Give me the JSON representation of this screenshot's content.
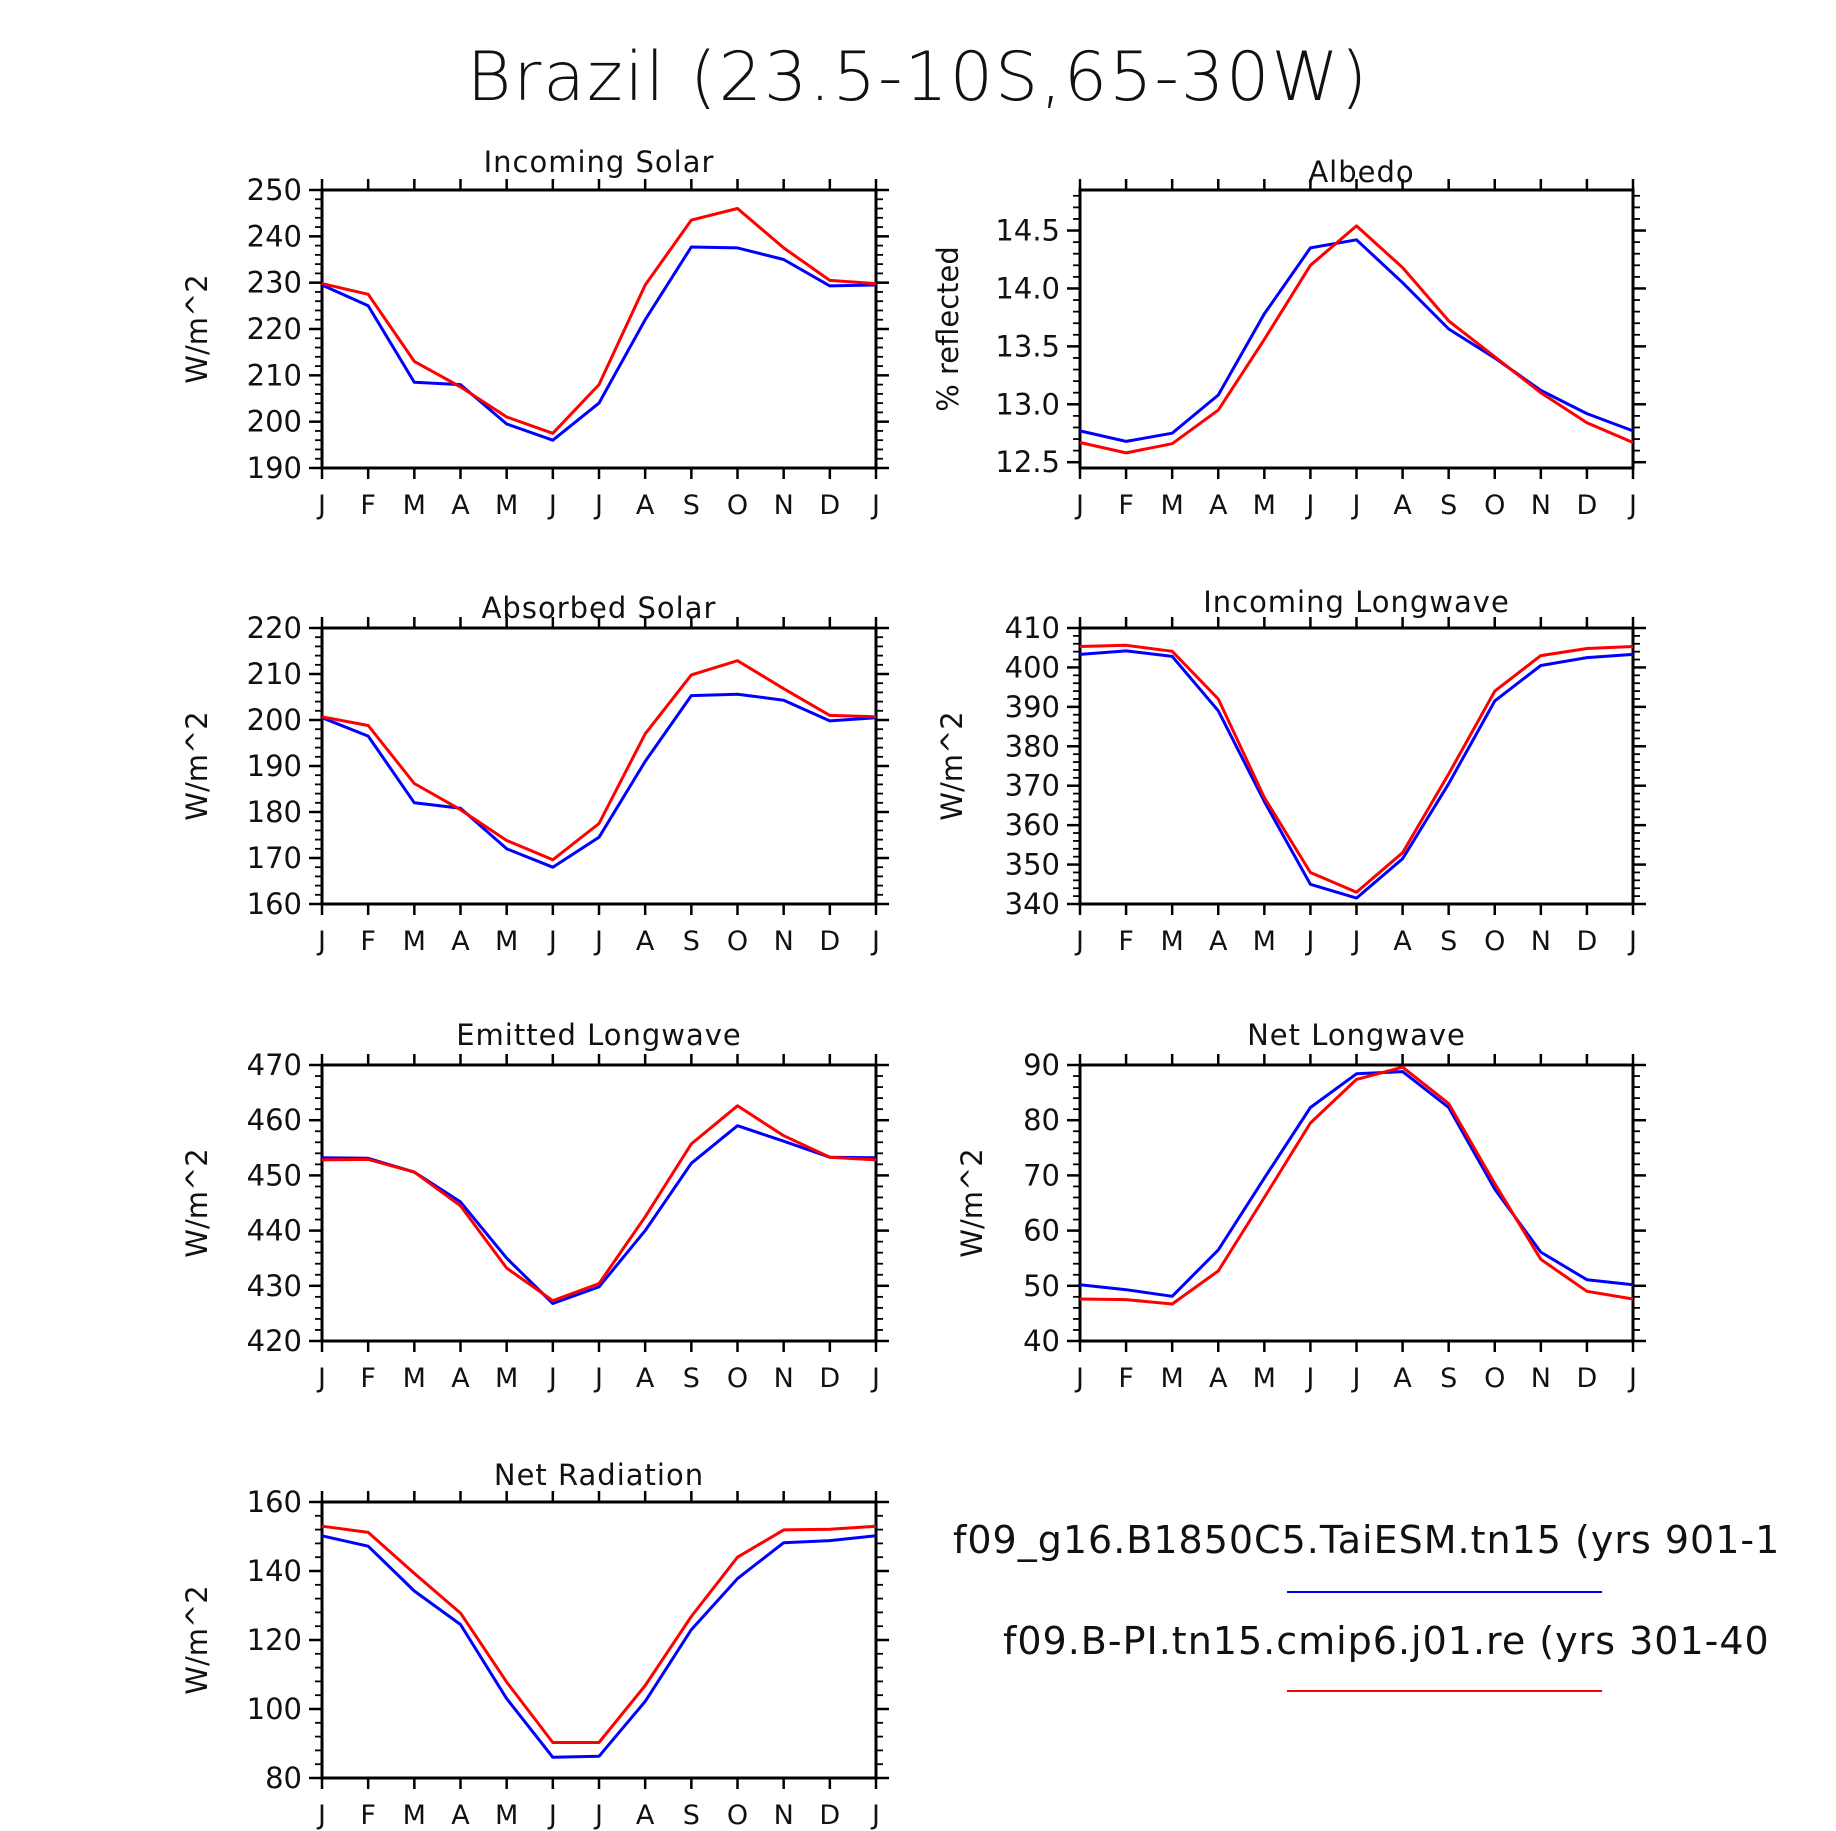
{
  "title": "Brazil (23.5-10S,65-30W)",
  "colors": {
    "case1": "#0000ff",
    "case2": "#ff0000",
    "axis": "#000000"
  },
  "months": [
    "J",
    "F",
    "M",
    "A",
    "M",
    "J",
    "J",
    "A",
    "S",
    "O",
    "N",
    "D",
    "J"
  ],
  "legend": {
    "case1": "f09_g16.B1850C5.TaiESM.tn15 (yrs 901-1",
    "case2": "f09.B-PI.tn15.cmip6.j01.re (yrs 301-40"
  },
  "chart_data": [
    {
      "type": "line",
      "title": "Incoming Solar",
      "ylabel": "W/m^2",
      "ylim": [
        190,
        250
      ],
      "yticks": [
        190,
        200,
        210,
        220,
        230,
        240,
        250
      ],
      "ytick_labels": [
        "190",
        "200",
        "210",
        "220",
        "230",
        "240",
        "250"
      ],
      "categories": [
        "J",
        "F",
        "M",
        "A",
        "M",
        "J",
        "J",
        "A",
        "S",
        "O",
        "N",
        "D",
        "J"
      ],
      "series": [
        {
          "color": "#0000ff",
          "values": [
            229.5,
            225,
            208.5,
            208,
            199.5,
            196,
            204,
            222,
            237.7,
            237.5,
            235,
            229.3,
            229.5
          ]
        },
        {
          "color": "#ff0000",
          "values": [
            229.8,
            227.5,
            213,
            207.5,
            201,
            197.5,
            208,
            229.5,
            243.5,
            246,
            237.5,
            230.5,
            229.8
          ]
        }
      ]
    },
    {
      "type": "line",
      "title": "Albedo",
      "ylabel": "% reflected",
      "ylim": [
        12.45,
        14.85
      ],
      "yticks": [
        12.5,
        13.0,
        13.5,
        14.0,
        14.5
      ],
      "ytick_labels": [
        "12.5",
        "13.0",
        "13.5",
        "14.0",
        "14.5"
      ],
      "categories": [
        "J",
        "F",
        "M",
        "A",
        "M",
        "J",
        "J",
        "A",
        "S",
        "O",
        "N",
        "D",
        "J"
      ],
      "series": [
        {
          "color": "#0000ff",
          "values": [
            12.77,
            12.68,
            12.75,
            13.08,
            13.78,
            14.35,
            14.42,
            14.05,
            13.65,
            13.4,
            13.12,
            12.92,
            12.77
          ]
        },
        {
          "color": "#ff0000",
          "values": [
            12.67,
            12.58,
            12.66,
            12.95,
            13.56,
            14.2,
            14.54,
            14.18,
            13.72,
            13.41,
            13.1,
            12.84,
            12.67
          ]
        }
      ]
    },
    {
      "type": "line",
      "title": "Absorbed Solar",
      "ylabel": "W/m^2",
      "ylim": [
        160,
        220
      ],
      "yticks": [
        160,
        170,
        180,
        190,
        200,
        210,
        220
      ],
      "ytick_labels": [
        "160",
        "170",
        "180",
        "190",
        "200",
        "210",
        "220"
      ],
      "categories": [
        "J",
        "F",
        "M",
        "A",
        "M",
        "J",
        "J",
        "A",
        "S",
        "O",
        "N",
        "D",
        "J"
      ],
      "series": [
        {
          "color": "#0000ff",
          "values": [
            200.5,
            196.5,
            182,
            180.8,
            172,
            168,
            174.5,
            191,
            205.3,
            205.6,
            204.3,
            199.8,
            200.5
          ]
        },
        {
          "color": "#ff0000",
          "values": [
            200.7,
            198.8,
            186.2,
            180.5,
            173.8,
            169.6,
            177.5,
            197,
            209.8,
            212.9,
            206.8,
            201,
            200.7
          ]
        }
      ]
    },
    {
      "type": "line",
      "title": "Incoming Longwave",
      "ylabel": "W/m^2",
      "ylim": [
        340,
        410
      ],
      "yticks": [
        340,
        350,
        360,
        370,
        380,
        390,
        400,
        410
      ],
      "ytick_labels": [
        "340",
        "350",
        "360",
        "370",
        "380",
        "390",
        "400",
        "410"
      ],
      "categories": [
        "J",
        "F",
        "M",
        "A",
        "M",
        "J",
        "J",
        "A",
        "S",
        "O",
        "N",
        "D",
        "J"
      ],
      "series": [
        {
          "color": "#0000ff",
          "values": [
            403.3,
            404.2,
            402.8,
            389,
            366,
            345,
            341.5,
            351.5,
            370.5,
            391.5,
            400.5,
            402.5,
            403.3
          ]
        },
        {
          "color": "#ff0000",
          "values": [
            405.3,
            405.6,
            404.1,
            392,
            367,
            348,
            343,
            353,
            373,
            394,
            403,
            404.8,
            405.3
          ]
        }
      ]
    },
    {
      "type": "line",
      "title": "Emitted Longwave",
      "ylabel": "W/m^2",
      "ylim": [
        420,
        470
      ],
      "yticks": [
        420,
        430,
        440,
        450,
        460,
        470
      ],
      "ytick_labels": [
        "420",
        "430",
        "440",
        "450",
        "460",
        "470"
      ],
      "categories": [
        "J",
        "F",
        "M",
        "A",
        "M",
        "J",
        "J",
        "A",
        "S",
        "O",
        "N",
        "D",
        "J"
      ],
      "series": [
        {
          "color": "#0000ff",
          "values": [
            453.2,
            453.1,
            450.6,
            445.2,
            435,
            426.8,
            429.8,
            440,
            452.2,
            459,
            456.2,
            453.3,
            453.2
          ]
        },
        {
          "color": "#ff0000",
          "values": [
            452.8,
            452.9,
            450.6,
            444.5,
            433.2,
            427.3,
            430.4,
            442.5,
            455.7,
            462.6,
            457.2,
            453.3,
            452.8
          ]
        }
      ]
    },
    {
      "type": "line",
      "title": "Net Longwave",
      "ylabel": "W/m^2",
      "ylim": [
        40,
        90
      ],
      "yticks": [
        40,
        50,
        60,
        70,
        80,
        90
      ],
      "ytick_labels": [
        "40",
        "50",
        "60",
        "70",
        "80",
        "90"
      ],
      "categories": [
        "J",
        "F",
        "M",
        "A",
        "M",
        "J",
        "J",
        "A",
        "S",
        "O",
        "N",
        "D",
        "J"
      ],
      "series": [
        {
          "color": "#0000ff",
          "values": [
            50.2,
            49.3,
            48.1,
            56.5,
            69.5,
            82.3,
            88.4,
            88.8,
            82.3,
            67.5,
            56.1,
            51.1,
            50.2
          ]
        },
        {
          "color": "#ff0000",
          "values": [
            47.6,
            47.5,
            46.7,
            52.7,
            66,
            79.5,
            87.4,
            89.6,
            83,
            68.5,
            54.8,
            49,
            47.6
          ]
        }
      ]
    },
    {
      "type": "line",
      "title": "Net Radiation",
      "ylabel": "W/m^2",
      "ylim": [
        80,
        160
      ],
      "yticks": [
        80,
        100,
        120,
        140,
        160
      ],
      "ytick_labels": [
        "80",
        "100",
        "120",
        "140",
        "160"
      ],
      "categories": [
        "J",
        "F",
        "M",
        "A",
        "M",
        "J",
        "J",
        "A",
        "S",
        "O",
        "N",
        "D",
        "J"
      ],
      "series": [
        {
          "color": "#0000ff",
          "values": [
            150.2,
            147.2,
            134.2,
            124.5,
            103,
            86,
            86.3,
            102.2,
            123,
            137.8,
            148.2,
            148.8,
            150.2
          ]
        },
        {
          "color": "#ff0000",
          "values": [
            153,
            151.2,
            139.3,
            127.8,
            107.8,
            90.3,
            90.3,
            106.8,
            126.8,
            144,
            151.9,
            152.1,
            153
          ]
        }
      ]
    }
  ]
}
